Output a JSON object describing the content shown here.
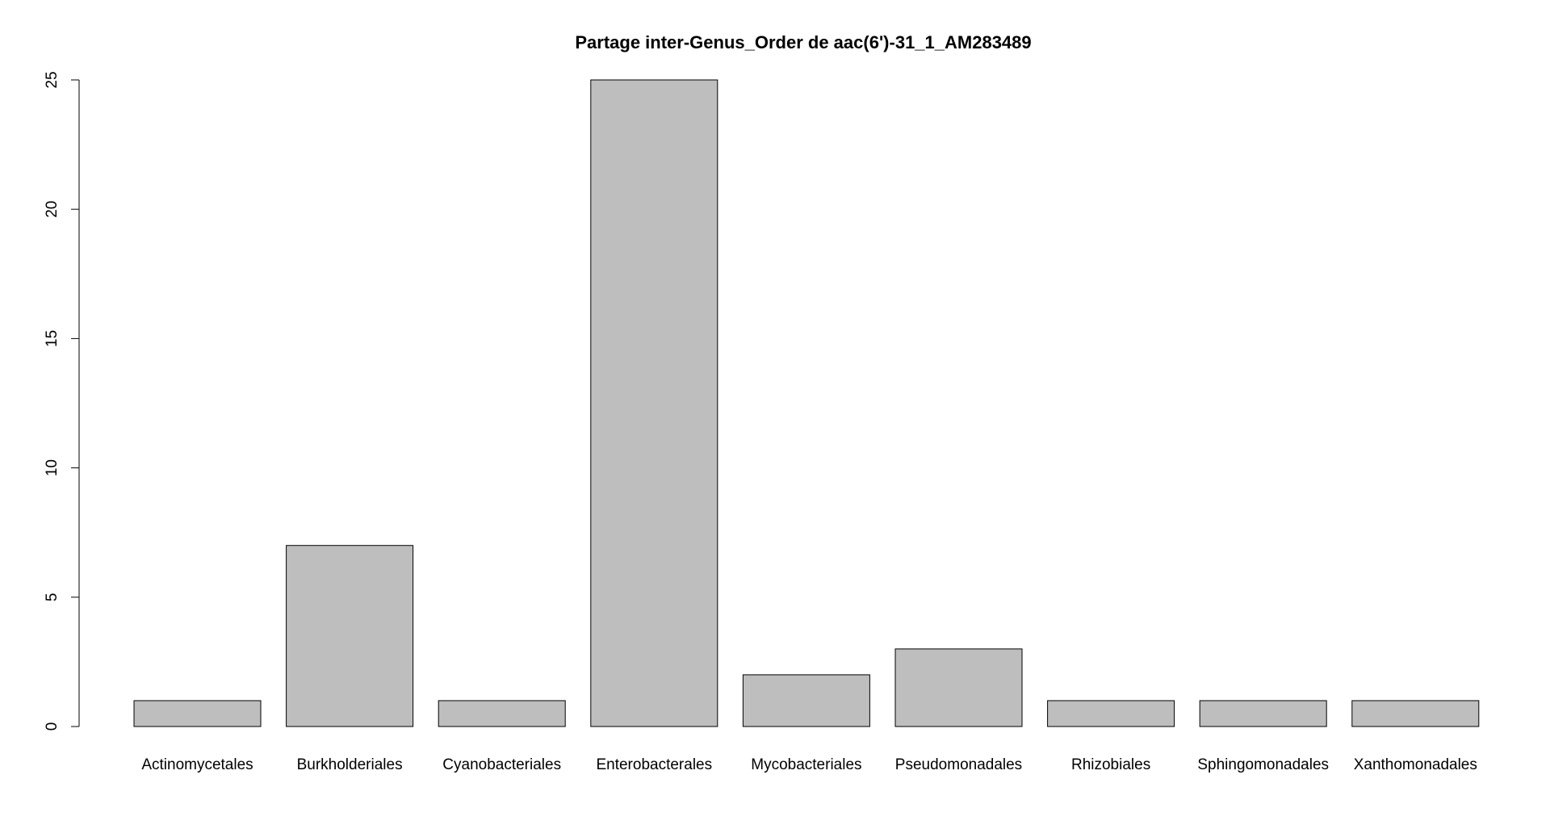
{
  "chart_data": {
    "type": "bar",
    "title": "Partage inter-Genus_Order de aac(6')-31_1_AM283489",
    "xlabel": "",
    "ylabel": "",
    "categories": [
      "Actinomycetales",
      "Burkholderiales",
      "Cyanobacteriales",
      "Enterobacterales",
      "Mycobacteriales",
      "Pseudomonadales",
      "Rhizobiales",
      "Sphingomonadales",
      "Xanthomonadales"
    ],
    "values": [
      1,
      7,
      1,
      25,
      2,
      3,
      1,
      1,
      1
    ],
    "ylim": [
      0,
      25
    ],
    "yticks": [
      0,
      5,
      10,
      15,
      20,
      25
    ],
    "grid": false,
    "legend": "none",
    "colors": {
      "bar_fill": "#bebebe",
      "bar_stroke": "#000000",
      "axis": "#000000",
      "background": "#ffffff"
    }
  }
}
